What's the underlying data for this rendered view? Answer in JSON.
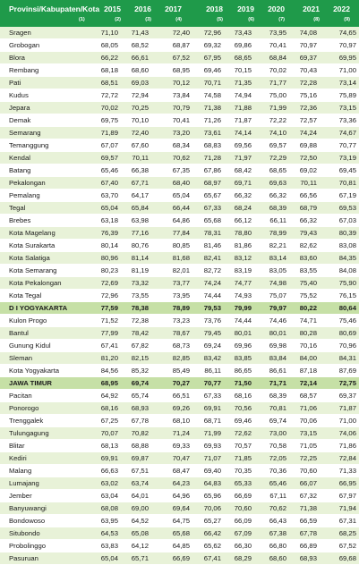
{
  "header": {
    "title": "Provinsi/Kabupaten/Kota",
    "col1_num": "(1)",
    "years": [
      "2015",
      "2016",
      "2017",
      "2018",
      "2019",
      "2020",
      "2021",
      "2022"
    ],
    "col_nums": [
      "(2)",
      "(3)",
      "(4)",
      "(5)",
      "(6)",
      "(7)",
      "(8)",
      "(9)"
    ]
  },
  "rows": [
    {
      "name": "Sragen",
      "values": [
        "71,10",
        "71,43",
        "72,40",
        "72,96",
        "73,43",
        "73,95",
        "74,08",
        "74,65"
      ]
    },
    {
      "name": "Grobogan",
      "values": [
        "68,05",
        "68,52",
        "68,87",
        "69,32",
        "69,86",
        "70,41",
        "70,97",
        "70,97"
      ]
    },
    {
      "name": "Blora",
      "values": [
        "66,22",
        "66,61",
        "67,52",
        "67,95",
        "68,65",
        "68,84",
        "69,37",
        "69,95"
      ]
    },
    {
      "name": "Rembang",
      "values": [
        "68,18",
        "68,60",
        "68,95",
        "69,46",
        "70,15",
        "70,02",
        "70,43",
        "71,00"
      ]
    },
    {
      "name": "Pati",
      "values": [
        "68,51",
        "69,03",
        "70,12",
        "70,71",
        "71,35",
        "71,77",
        "72,28",
        "73,14"
      ]
    },
    {
      "name": "Kudus",
      "values": [
        "72,72",
        "72,94",
        "73,84",
        "74,58",
        "74,94",
        "75,00",
        "75,16",
        "75,89"
      ]
    },
    {
      "name": "Jepara",
      "values": [
        "70,02",
        "70,25",
        "70,79",
        "71,38",
        "71,88",
        "71,99",
        "72,36",
        "73,15"
      ]
    },
    {
      "name": "Demak",
      "values": [
        "69,75",
        "70,10",
        "70,41",
        "71,26",
        "71,87",
        "72,22",
        "72,57",
        "73,36"
      ]
    },
    {
      "name": "Semarang",
      "values": [
        "71,89",
        "72,40",
        "73,20",
        "73,61",
        "74,14",
        "74,10",
        "74,24",
        "74,67"
      ]
    },
    {
      "name": "Temanggung",
      "values": [
        "67,07",
        "67,60",
        "68,34",
        "68,83",
        "69,56",
        "69,57",
        "69,88",
        "70,77"
      ]
    },
    {
      "name": "Kendal",
      "values": [
        "69,57",
        "70,11",
        "70,62",
        "71,28",
        "71,97",
        "72,29",
        "72,50",
        "73,19"
      ]
    },
    {
      "name": "Batang",
      "values": [
        "65,46",
        "66,38",
        "67,35",
        "67,86",
        "68,42",
        "68,65",
        "69,02",
        "69,45"
      ]
    },
    {
      "name": "Pekalongan",
      "values": [
        "67,40",
        "67,71",
        "68,40",
        "68,97",
        "69,71",
        "69,63",
        "70,11",
        "70,81"
      ]
    },
    {
      "name": "Pemalang",
      "values": [
        "63,70",
        "64,17",
        "65,04",
        "65,67",
        "66,32",
        "66,32",
        "66,56",
        "67,19"
      ]
    },
    {
      "name": "Tegal",
      "values": [
        "65,04",
        "65,84",
        "66,44",
        "67,33",
        "68,24",
        "68,39",
        "68,79",
        "69,53"
      ]
    },
    {
      "name": "Brebes",
      "values": [
        "63,18",
        "63,98",
        "64,86",
        "65,68",
        "66,12",
        "66,11",
        "66,32",
        "67,03"
      ]
    },
    {
      "name": "Kota Magelang",
      "values": [
        "76,39",
        "77,16",
        "77,84",
        "78,31",
        "78,80",
        "78,99",
        "79,43",
        "80,39"
      ]
    },
    {
      "name": "Kota Surakarta",
      "values": [
        "80,14",
        "80,76",
        "80,85",
        "81,46",
        "81,86",
        "82,21",
        "82,62",
        "83,08"
      ]
    },
    {
      "name": "Kota Salatiga",
      "values": [
        "80,96",
        "81,14",
        "81,68",
        "82,41",
        "83,12",
        "83,14",
        "83,60",
        "84,35"
      ]
    },
    {
      "name": "Kota Semarang",
      "values": [
        "80,23",
        "81,19",
        "82,01",
        "82,72",
        "83,19",
        "83,05",
        "83,55",
        "84,08"
      ]
    },
    {
      "name": "Kota Pekalongan",
      "values": [
        "72,69",
        "73,32",
        "73,77",
        "74,24",
        "74,77",
        "74,98",
        "75,40",
        "75,90"
      ]
    },
    {
      "name": "Kota Tegal",
      "values": [
        "72,96",
        "73,55",
        "73,95",
        "74,44",
        "74,93",
        "75,07",
        "75,52",
        "76,15"
      ]
    },
    {
      "name": "D I YOGYAKARTA",
      "values": [
        "77,59",
        "78,38",
        "78,89",
        "79,53",
        "79,99",
        "79,97",
        "80,22",
        "80,64"
      ],
      "bold": true
    },
    {
      "name": "Kulon Progo",
      "values": [
        "71,52",
        "72,38",
        "73,23",
        "73,76",
        "74,44",
        "74,46",
        "74,71",
        "75,46"
      ]
    },
    {
      "name": "Bantul",
      "values": [
        "77,99",
        "78,42",
        "78,67",
        "79,45",
        "80,01",
        "80,01",
        "80,28",
        "80,69"
      ]
    },
    {
      "name": "Gunung Kidul",
      "values": [
        "67,41",
        "67,82",
        "68,73",
        "69,24",
        "69,96",
        "69,98",
        "70,16",
        "70,96"
      ]
    },
    {
      "name": "Sleman",
      "values": [
        "81,20",
        "82,15",
        "82,85",
        "83,42",
        "83,85",
        "83,84",
        "84,00",
        "84,31"
      ]
    },
    {
      "name": "Kota Yogyakarta",
      "values": [
        "84,56",
        "85,32",
        "85,49",
        "86,11",
        "86,65",
        "86,61",
        "87,18",
        "87,69"
      ]
    },
    {
      "name": "JAWA TIMUR",
      "values": [
        "68,95",
        "69,74",
        "70,27",
        "70,77",
        "71,50",
        "71,71",
        "72,14",
        "72,75"
      ],
      "bold": true
    },
    {
      "name": "Pacitan",
      "values": [
        "64,92",
        "65,74",
        "66,51",
        "67,33",
        "68,16",
        "68,39",
        "68,57",
        "69,37"
      ]
    },
    {
      "name": "Ponorogo",
      "values": [
        "68,16",
        "68,93",
        "69,26",
        "69,91",
        "70,56",
        "70,81",
        "71,06",
        "71,87"
      ]
    },
    {
      "name": "Trenggalek",
      "values": [
        "67,25",
        "67,78",
        "68,10",
        "68,71",
        "69,46",
        "69,74",
        "70,06",
        "71,00"
      ]
    },
    {
      "name": "Tulungagung",
      "values": [
        "70,07",
        "70,82",
        "71,24",
        "71,99",
        "72,62",
        "73,00",
        "73,15",
        "74,06"
      ]
    },
    {
      "name": "Blitar",
      "values": [
        "68,13",
        "68,88",
        "69,33",
        "69,93",
        "70,57",
        "70,58",
        "71,05",
        "71,86"
      ]
    },
    {
      "name": "Kediri",
      "values": [
        "69,91",
        "69,87",
        "70,47",
        "71,07",
        "71,85",
        "72,05",
        "72,25",
        "72,84"
      ]
    },
    {
      "name": "Malang",
      "values": [
        "66,63",
        "67,51",
        "68,47",
        "69,40",
        "70,35",
        "70,36",
        "70,60",
        "71,33"
      ]
    },
    {
      "name": "Lumajang",
      "values": [
        "63,02",
        "63,74",
        "64,23",
        "64,83",
        "65,33",
        "65,46",
        "66,07",
        "66,95"
      ]
    },
    {
      "name": "Jember",
      "values": [
        "63,04",
        "64,01",
        "64,96",
        "65,96",
        "66,69",
        "67,11",
        "67,32",
        "67,97"
      ]
    },
    {
      "name": "Banyuwangi",
      "values": [
        "68,08",
        "69,00",
        "69,64",
        "70,06",
        "70,60",
        "70,62",
        "71,38",
        "71,94"
      ]
    },
    {
      "name": "Bondowoso",
      "values": [
        "63,95",
        "64,52",
        "64,75",
        "65,27",
        "66,09",
        "66,43",
        "66,59",
        "67,31"
      ]
    },
    {
      "name": "Situbondo",
      "values": [
        "64,53",
        "65,08",
        "65,68",
        "66,42",
        "67,09",
        "67,38",
        "67,78",
        "68,25"
      ]
    },
    {
      "name": "Probolinggo",
      "values": [
        "63,83",
        "64,12",
        "64,85",
        "65,62",
        "66,30",
        "66,80",
        "66,89",
        "67,52"
      ]
    },
    {
      "name": "Pasuruan",
      "values": [
        "65,04",
        "65,71",
        "66,69",
        "67,41",
        "68,29",
        "68,60",
        "68,93",
        "69,68"
      ]
    }
  ]
}
